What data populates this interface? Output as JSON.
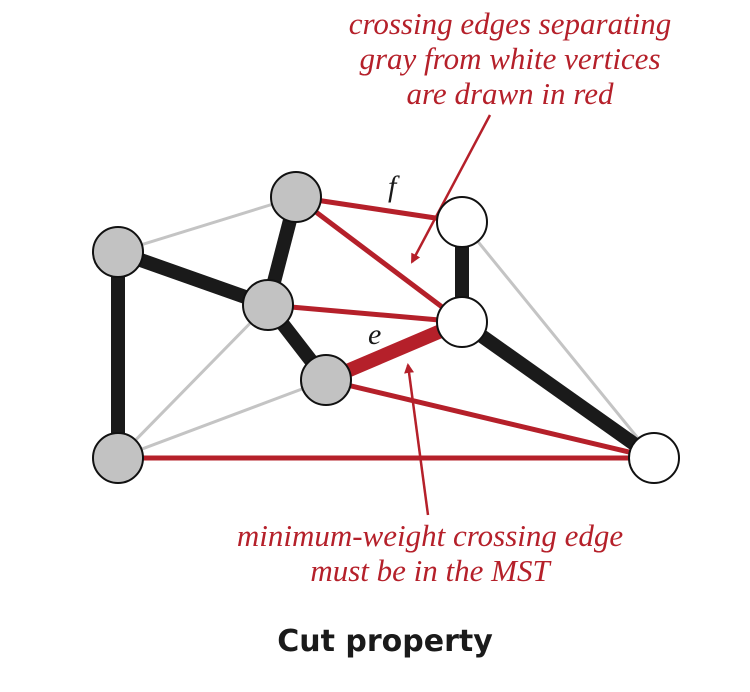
{
  "annotations": {
    "top": [
      "crossing edges separating",
      "gray from white vertices",
      "are drawn in red"
    ],
    "bottom": [
      "minimum-weight crossing edge",
      "must be in the MST"
    ]
  },
  "edge_labels": {
    "f": "f",
    "e": "e"
  },
  "caption": "Cut property",
  "colors": {
    "red": "#b5202a",
    "mst": "#1a1a1a",
    "light": "#c4c4c4",
    "gray_vertex": "#c2c2c2",
    "white_vertex": "#ffffff"
  },
  "vertices": [
    {
      "id": "g1",
      "color": "gray"
    },
    {
      "id": "g2",
      "color": "gray"
    },
    {
      "id": "g3",
      "color": "gray"
    },
    {
      "id": "g4",
      "color": "gray"
    },
    {
      "id": "g5",
      "color": "gray"
    },
    {
      "id": "w1",
      "color": "white"
    },
    {
      "id": "w2",
      "color": "white"
    },
    {
      "id": "w3",
      "color": "white"
    }
  ],
  "edges": [
    {
      "from": "g1",
      "to": "g2",
      "kind": "light"
    },
    {
      "from": "g1",
      "to": "g3",
      "kind": "light"
    },
    {
      "from": "g5",
      "to": "g3",
      "kind": "light"
    },
    {
      "from": "g5",
      "to": "g4",
      "kind": "light"
    },
    {
      "from": "w1",
      "to": "w3",
      "kind": "light"
    },
    {
      "from": "g2",
      "to": "w1",
      "kind": "crossing",
      "label": "f"
    },
    {
      "from": "g2",
      "to": "w2",
      "kind": "crossing"
    },
    {
      "from": "g3",
      "to": "w2",
      "kind": "crossing"
    },
    {
      "from": "g4",
      "to": "w3",
      "kind": "crossing"
    },
    {
      "from": "g5",
      "to": "w3",
      "kind": "crossing"
    },
    {
      "from": "g1",
      "to": "g3",
      "kind": "mst"
    },
    {
      "from": "g2",
      "to": "g3",
      "kind": "mst"
    },
    {
      "from": "g3",
      "to": "g4",
      "kind": "mst"
    },
    {
      "from": "g1",
      "to": "g5",
      "kind": "mst"
    },
    {
      "from": "w1",
      "to": "w2",
      "kind": "mst"
    },
    {
      "from": "w2",
      "to": "w3",
      "kind": "mst"
    },
    {
      "from": "g4",
      "to": "w2",
      "kind": "min-crossing",
      "label": "e"
    }
  ]
}
